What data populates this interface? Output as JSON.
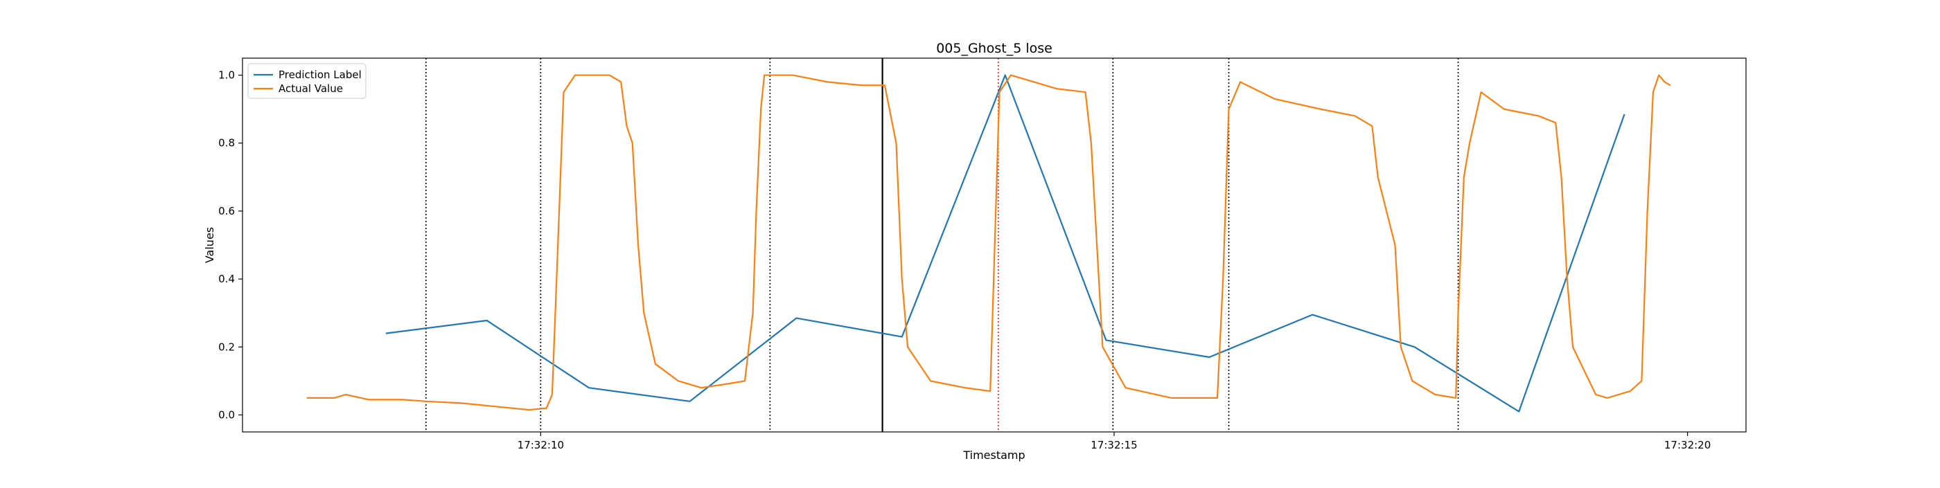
{
  "chart_data": {
    "type": "line",
    "title": "005_Ghost_5 lose",
    "xlabel": "Timestamp",
    "ylabel": "Values",
    "xlim": [
      "17:32:07.400",
      "17:32:20.510"
    ],
    "ylim": [
      -0.05,
      1.05
    ],
    "x_tick_labels": [
      "17:32:10",
      "17:32:15",
      "17:32:20"
    ],
    "x_tick_values": [
      "17:32:10",
      "17:32:15",
      "17:32:20"
    ],
    "y_tick_labels": [
      "0.0",
      "0.2",
      "0.4",
      "0.6",
      "0.8",
      "1.0"
    ],
    "y_tick_values": [
      0,
      0.2,
      0.4,
      0.6,
      0.8,
      1.0
    ],
    "grid": false,
    "legend_position": "top-left",
    "series": [
      {
        "name": "Prediction Label",
        "color": "#1f77b4",
        "points": [
          [
            "17:32:08.650",
            0.24
          ],
          [
            "17:32:09.530",
            0.278
          ],
          [
            "17:32:10.420",
            0.08
          ],
          [
            "17:32:11.300",
            0.04
          ],
          [
            "17:32:12.230",
            0.285
          ],
          [
            "17:32:13.150",
            0.23
          ],
          [
            "17:32:14.050",
            1.0
          ],
          [
            "17:32:14.930",
            0.22
          ],
          [
            "17:32:15.830",
            0.17
          ],
          [
            "17:32:16.730",
            0.295
          ],
          [
            "17:32:17.620",
            0.2
          ],
          [
            "17:32:18.530",
            0.01
          ],
          [
            "17:32:19.450",
            0.885
          ]
        ]
      },
      {
        "name": "Actual Value",
        "color": "#ff7f0e",
        "points": [
          [
            "17:32:07.960",
            0.05
          ],
          [
            "17:32:08.200",
            0.05
          ],
          [
            "17:32:08.300",
            0.06
          ],
          [
            "17:32:08.500",
            0.045
          ],
          [
            "17:32:08.800",
            0.045
          ],
          [
            "17:32:09.000",
            0.04
          ],
          [
            "17:32:09.300",
            0.035
          ],
          [
            "17:32:09.600",
            0.025
          ],
          [
            "17:32:09.900",
            0.015
          ],
          [
            "17:32:10.050",
            0.02
          ],
          [
            "17:32:10.100",
            0.06
          ],
          [
            "17:32:10.150",
            0.5
          ],
          [
            "17:32:10.200",
            0.95
          ],
          [
            "17:32:10.300",
            1.0
          ],
          [
            "17:32:10.600",
            1.0
          ],
          [
            "17:32:10.700",
            0.98
          ],
          [
            "17:32:10.750",
            0.85
          ],
          [
            "17:32:10.800",
            0.8
          ],
          [
            "17:32:10.850",
            0.5
          ],
          [
            "17:32:10.900",
            0.3
          ],
          [
            "17:32:11.000",
            0.15
          ],
          [
            "17:32:11.200",
            0.1
          ],
          [
            "17:32:11.400",
            0.08
          ],
          [
            "17:32:11.600",
            0.09
          ],
          [
            "17:32:11.780",
            0.1
          ],
          [
            "17:32:11.850",
            0.3
          ],
          [
            "17:32:11.880",
            0.6
          ],
          [
            "17:32:11.920",
            0.9
          ],
          [
            "17:32:11.950",
            1.0
          ],
          [
            "17:32:12.200",
            1.0
          ],
          [
            "17:32:12.500",
            0.98
          ],
          [
            "17:32:12.800",
            0.97
          ],
          [
            "17:32:13.000",
            0.97
          ],
          [
            "17:32:13.100",
            0.8
          ],
          [
            "17:32:13.150",
            0.4
          ],
          [
            "17:32:13.200",
            0.2
          ],
          [
            "17:32:13.400",
            0.1
          ],
          [
            "17:32:13.700",
            0.08
          ],
          [
            "17:32:13.920",
            0.07
          ],
          [
            "17:32:13.950",
            0.4
          ],
          [
            "17:32:14.000",
            0.95
          ],
          [
            "17:32:14.100",
            1.0
          ],
          [
            "17:32:14.300",
            0.98
          ],
          [
            "17:32:14.500",
            0.96
          ],
          [
            "17:32:14.750",
            0.95
          ],
          [
            "17:32:14.800",
            0.8
          ],
          [
            "17:32:14.850",
            0.5
          ],
          [
            "17:32:14.900",
            0.2
          ],
          [
            "17:32:15.100",
            0.08
          ],
          [
            "17:32:15.500",
            0.05
          ],
          [
            "17:32:15.900",
            0.05
          ],
          [
            "17:32:15.950",
            0.4
          ],
          [
            "17:32:16.000",
            0.9
          ],
          [
            "17:32:16.100",
            0.98
          ],
          [
            "17:32:16.400",
            0.93
          ],
          [
            "17:32:16.800",
            0.9
          ],
          [
            "17:32:17.100",
            0.88
          ],
          [
            "17:32:17.250",
            0.85
          ],
          [
            "17:32:17.300",
            0.7
          ],
          [
            "17:32:17.450",
            0.5
          ],
          [
            "17:32:17.500",
            0.2
          ],
          [
            "17:32:17.600",
            0.1
          ],
          [
            "17:32:17.800",
            0.06
          ],
          [
            "17:32:17.980",
            0.05
          ],
          [
            "17:32:18.000",
            0.3
          ],
          [
            "17:32:18.050",
            0.7
          ],
          [
            "17:32:18.100",
            0.8
          ],
          [
            "17:32:18.200",
            0.95
          ],
          [
            "17:32:18.400",
            0.9
          ],
          [
            "17:32:18.700",
            0.88
          ],
          [
            "17:32:18.850",
            0.86
          ],
          [
            "17:32:18.900",
            0.7
          ],
          [
            "17:32:18.950",
            0.4
          ],
          [
            "17:32:19.000",
            0.2
          ],
          [
            "17:32:19.200",
            0.06
          ],
          [
            "17:32:19.300",
            0.05
          ],
          [
            "17:32:19.400",
            0.06
          ],
          [
            "17:32:19.500",
            0.07
          ],
          [
            "17:32:19.600",
            0.1
          ],
          [
            "17:32:19.650",
            0.6
          ],
          [
            "17:32:19.700",
            0.95
          ],
          [
            "17:32:19.750",
            1.0
          ],
          [
            "17:32:19.800",
            0.98
          ],
          [
            "17:32:19.850",
            0.97
          ]
        ]
      }
    ],
    "vertical_lines": [
      {
        "x": "17:32:09.000",
        "style": "dotted",
        "color": "#000000"
      },
      {
        "x": "17:32:10.000",
        "style": "dotted",
        "color": "#000000"
      },
      {
        "x": "17:32:12.000",
        "style": "dotted",
        "color": "#000000"
      },
      {
        "x": "17:32:12.980",
        "style": "solid",
        "color": "#000000"
      },
      {
        "x": "17:32:13.990",
        "style": "dotted",
        "color": "#d62728"
      },
      {
        "x": "17:32:14.990",
        "style": "dotted",
        "color": "#000000"
      },
      {
        "x": "17:32:16.000",
        "style": "dotted",
        "color": "#000000"
      },
      {
        "x": "17:32:18.000",
        "style": "dotted",
        "color": "#000000"
      }
    ]
  }
}
